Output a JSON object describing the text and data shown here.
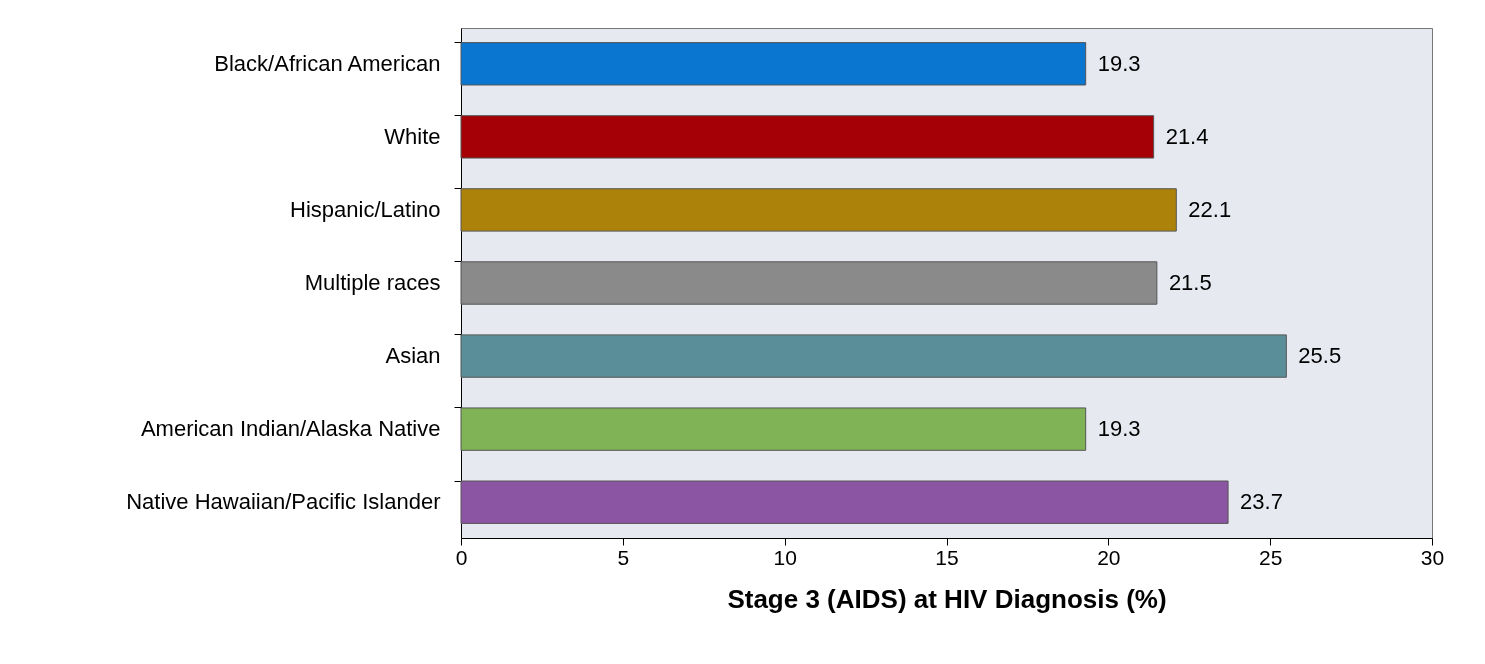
{
  "chart_data": {
    "type": "bar",
    "orientation": "horizontal",
    "xlabel": "Stage 3 (AIDS) at HIV Diagnosis (%)",
    "categories": [
      "Black/African American",
      "White",
      "Hispanic/Latino",
      "Multiple races",
      "Asian",
      "American Indian/Alaska Native",
      "Native Hawaiian/Pacific Islander"
    ],
    "values": [
      19.3,
      21.4,
      22.1,
      21.5,
      25.5,
      19.3,
      23.7
    ],
    "colors": [
      "#0a76d0",
      "#a50005",
      "#ad820b",
      "#8a8a8a",
      "#5a8f9a",
      "#7fb356",
      "#8c55a3"
    ],
    "xlim": [
      0,
      30
    ],
    "xticks": [
      0,
      5,
      10,
      15,
      20,
      25,
      30
    ],
    "data_labels": true,
    "grid": false
  }
}
